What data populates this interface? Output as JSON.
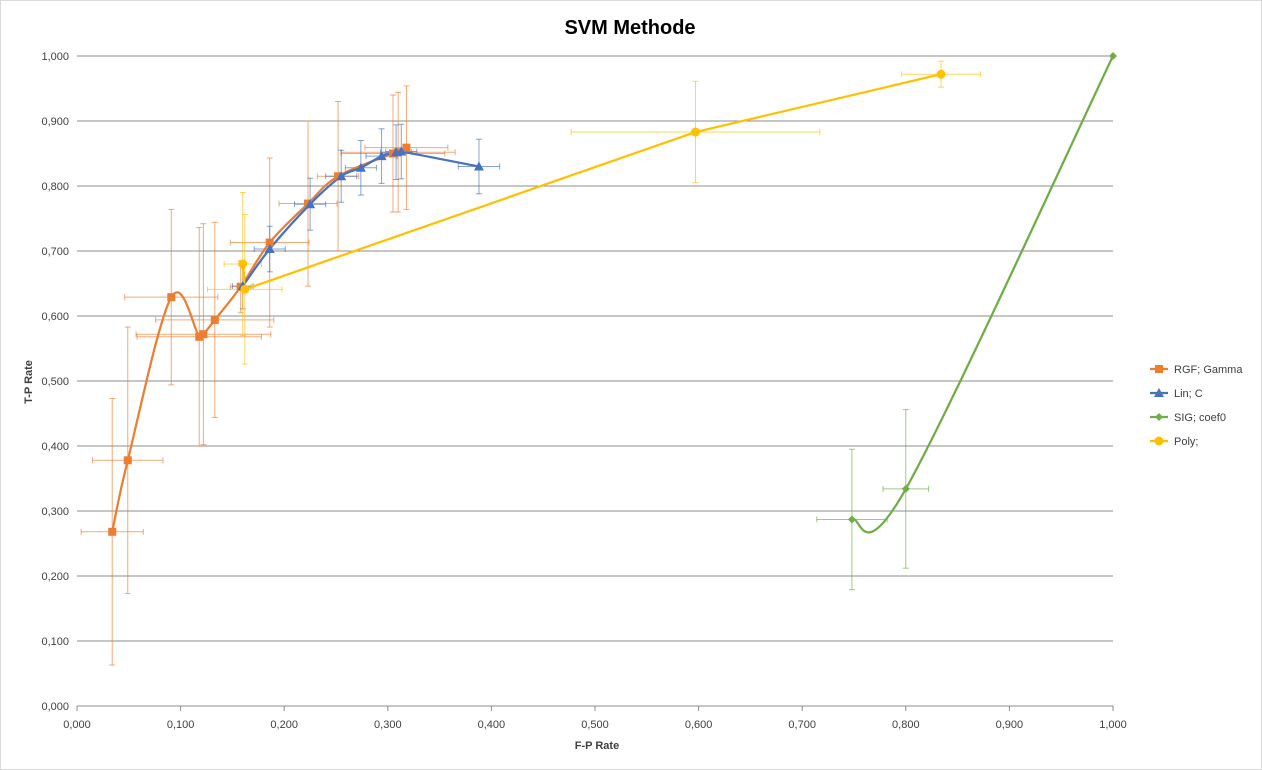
{
  "chart_data": {
    "type": "scatter",
    "title": "SVM Methode",
    "xlabel": "F-P Rate",
    "ylabel": "T-P Rate",
    "xlim": [
      0,
      1
    ],
    "ylim": [
      0,
      1
    ],
    "x_ticks": [
      "0,000",
      "0,100",
      "0,200",
      "0,300",
      "0,400",
      "0,500",
      "0,600",
      "0,700",
      "0,800",
      "0,900",
      "1,000"
    ],
    "y_ticks": [
      "0,000",
      "0,100",
      "0,200",
      "0,300",
      "0,400",
      "0,500",
      "0,600",
      "0,700",
      "0,800",
      "0,900",
      "1,000"
    ],
    "grid": "horizontal",
    "legend_position": "right",
    "series": [
      {
        "name": "RGF; Gamma",
        "color": "#ED7D31",
        "marker": "square",
        "curve": "smooth",
        "points": [
          {
            "x": 0.034,
            "y": 0.268,
            "xerr": 0.03,
            "yerr": 0.205
          },
          {
            "x": 0.049,
            "y": 0.378,
            "xerr": 0.034,
            "yerr": 0.205
          },
          {
            "x": 0.091,
            "y": 0.629,
            "xerr": 0.045,
            "yerr": 0.135
          },
          {
            "x": 0.118,
            "y": 0.568,
            "xerr": 0.06,
            "yerr": 0.168
          },
          {
            "x": 0.122,
            "y": 0.572,
            "xerr": 0.065,
            "yerr": 0.17
          },
          {
            "x": 0.133,
            "y": 0.594,
            "xerr": 0.057,
            "yerr": 0.15
          },
          {
            "x": 0.158,
            "y": 0.645,
            "xerr": 0.01,
            "yerr": 0.04
          },
          {
            "x": 0.186,
            "y": 0.713,
            "xerr": 0.038,
            "yerr": 0.13
          },
          {
            "x": 0.223,
            "y": 0.773,
            "xerr": 0.028,
            "yerr": 0.127
          },
          {
            "x": 0.252,
            "y": 0.815,
            "xerr": 0.02,
            "yerr": 0.115
          },
          {
            "x": 0.305,
            "y": 0.85,
            "xerr": 0.05,
            "yerr": 0.09
          },
          {
            "x": 0.31,
            "y": 0.852,
            "xerr": 0.055,
            "yerr": 0.092
          },
          {
            "x": 0.318,
            "y": 0.859,
            "xerr": 0.04,
            "yerr": 0.095
          }
        ]
      },
      {
        "name": "Lin; C",
        "color": "#4472C4",
        "marker": "triangle",
        "curve": "smooth",
        "points": [
          {
            "x": 0.16,
            "y": 0.646,
            "xerr": 0.01,
            "yerr": 0.035
          },
          {
            "x": 0.186,
            "y": 0.703,
            "xerr": 0.015,
            "yerr": 0.035
          },
          {
            "x": 0.225,
            "y": 0.772,
            "xerr": 0.015,
            "yerr": 0.04
          },
          {
            "x": 0.255,
            "y": 0.815,
            "xerr": 0.015,
            "yerr": 0.04
          },
          {
            "x": 0.274,
            "y": 0.828,
            "xerr": 0.015,
            "yerr": 0.042
          },
          {
            "x": 0.294,
            "y": 0.846,
            "xerr": 0.015,
            "yerr": 0.042
          },
          {
            "x": 0.308,
            "y": 0.852,
            "xerr": 0.015,
            "yerr": 0.042
          },
          {
            "x": 0.313,
            "y": 0.853,
            "xerr": 0.015,
            "yerr": 0.042
          },
          {
            "x": 0.388,
            "y": 0.83,
            "xerr": 0.02,
            "yerr": 0.042
          }
        ]
      },
      {
        "name": "SIG; coef0",
        "color": "#70AD47",
        "marker": "diamond",
        "curve": "smooth",
        "points": [
          {
            "x": 0.748,
            "y": 0.287,
            "xerr": 0.034,
            "yerr": 0.108
          },
          {
            "x": 0.8,
            "y": 0.334,
            "xerr": 0.022,
            "yerr": 0.122
          },
          {
            "x": 1.0,
            "y": 1.0,
            "xerr": 0,
            "yerr": 0
          }
        ]
      },
      {
        "name": "Poly;",
        "color": "#FFC000",
        "marker": "circle",
        "curve": "straight",
        "points": [
          {
            "x": 0.16,
            "y": 0.68,
            "xerr": 0.018,
            "yerr": 0.11
          },
          {
            "x": 0.162,
            "y": 0.641,
            "xerr": 0.036,
            "yerr": 0.115
          },
          {
            "x": 0.597,
            "y": 0.883,
            "xerr": 0.12,
            "yerr": 0.078
          },
          {
            "x": 0.834,
            "y": 0.972,
            "xerr": 0.038,
            "yerr": 0.02
          }
        ]
      }
    ]
  }
}
